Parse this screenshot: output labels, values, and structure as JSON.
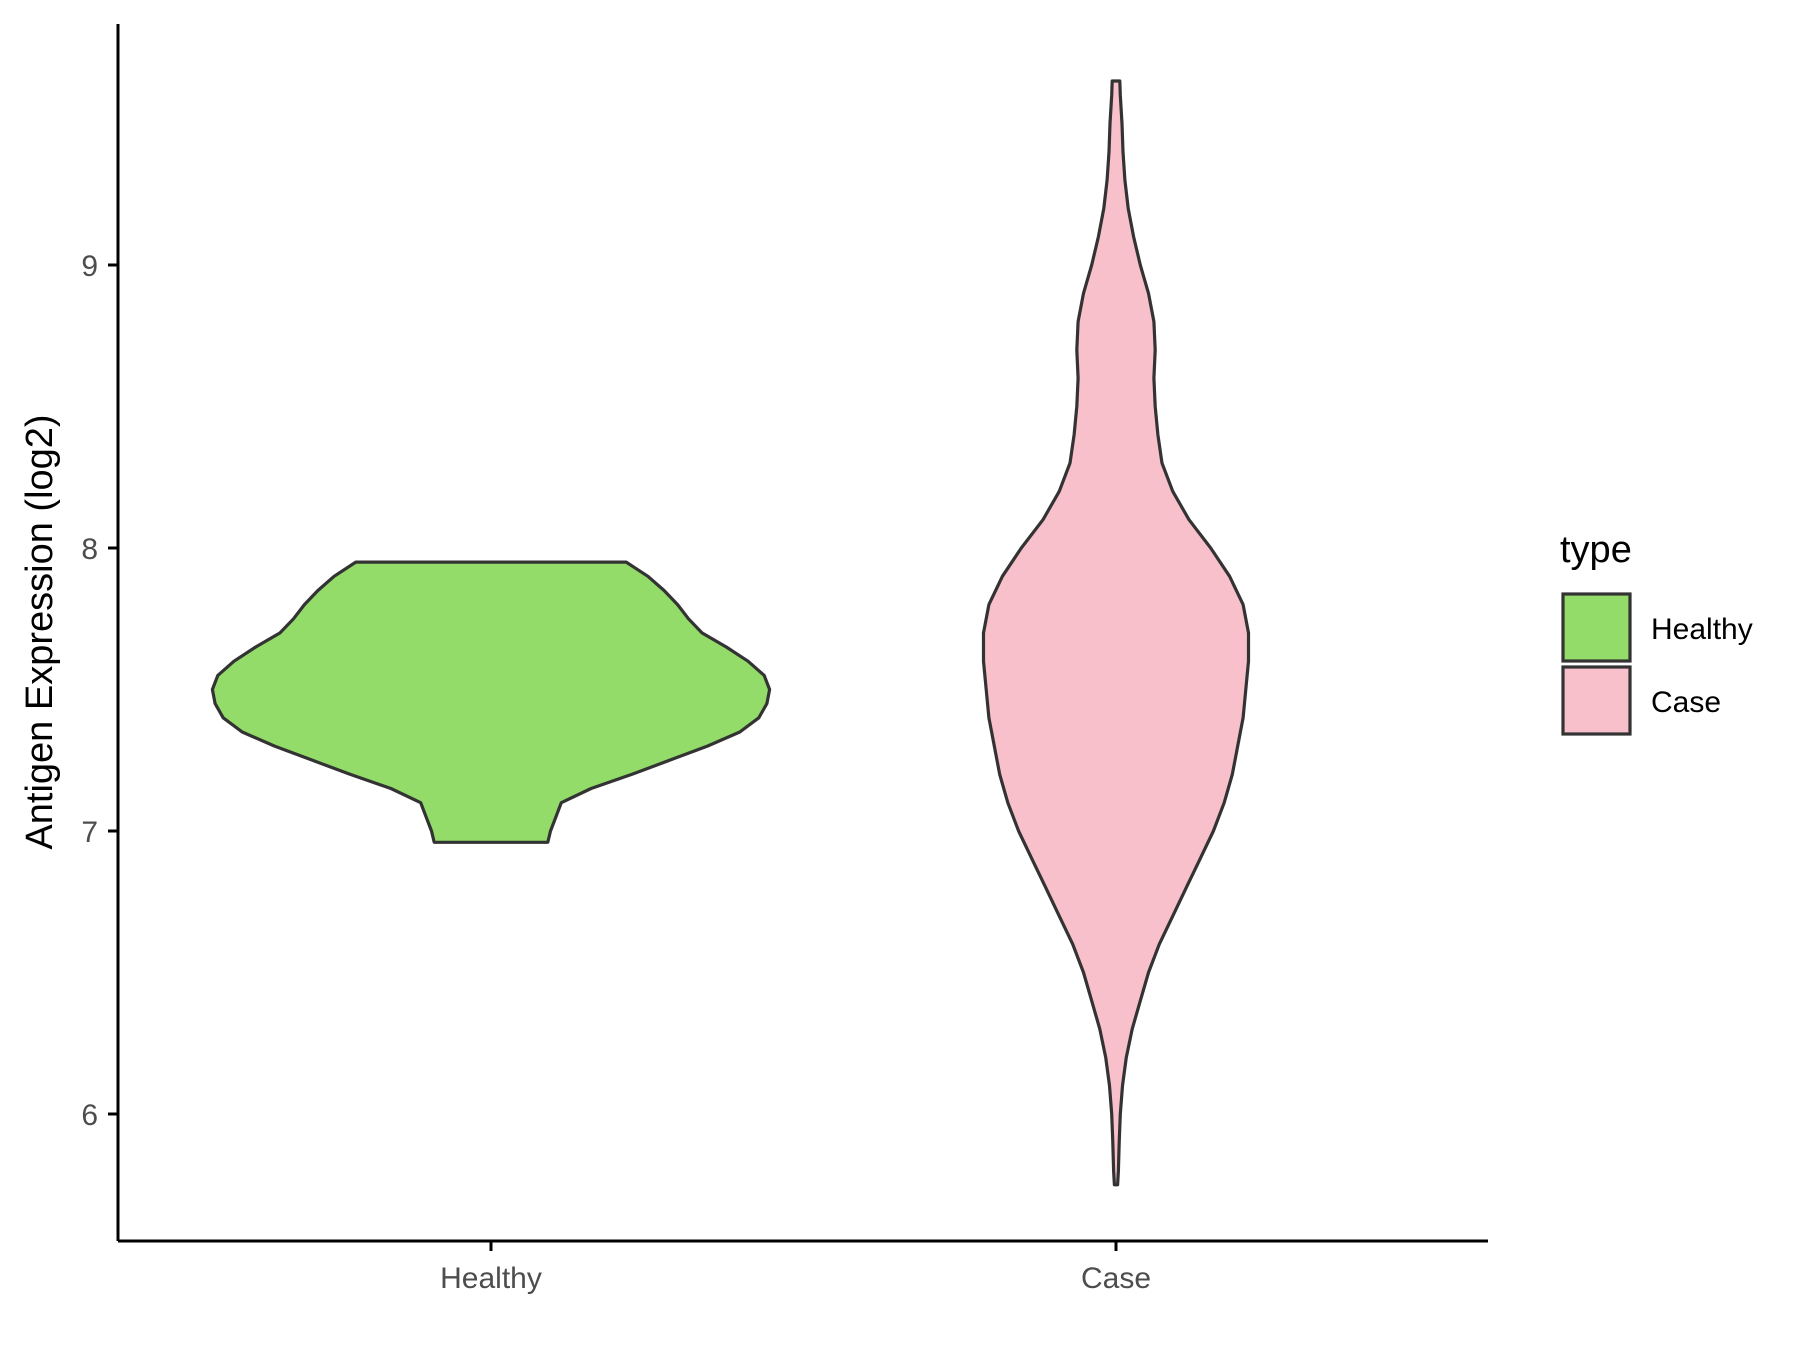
{
  "chart_data": {
    "type": "violin",
    "categories": [
      "Healthy",
      "Case"
    ],
    "ylabel": "Antigen Expression (log2)",
    "xlabel": "",
    "ylim": [
      5.55,
      9.85
    ],
    "yticks": [
      6,
      7,
      8,
      9
    ],
    "grid": false,
    "legend": {
      "title": "type",
      "position": "right",
      "entries": [
        {
          "label": "Healthy",
          "color": "#93dc6a"
        },
        {
          "label": "Case",
          "color": "#f8c0cb"
        }
      ]
    },
    "series": [
      {
        "name": "Healthy",
        "color": "#93dc6a",
        "range": [
          6.96,
          7.95
        ],
        "density": [
          [
            6.96,
            0.21
          ],
          [
            7.0,
            0.22
          ],
          [
            7.05,
            0.24
          ],
          [
            7.1,
            0.26
          ],
          [
            7.15,
            0.37
          ],
          [
            7.2,
            0.52
          ],
          [
            7.25,
            0.66
          ],
          [
            7.3,
            0.8
          ],
          [
            7.35,
            0.92
          ],
          [
            7.4,
            0.99
          ],
          [
            7.45,
            1.02
          ],
          [
            7.5,
            1.03
          ],
          [
            7.55,
            1.01
          ],
          [
            7.6,
            0.95
          ],
          [
            7.65,
            0.87
          ],
          [
            7.7,
            0.78
          ],
          [
            7.75,
            0.73
          ],
          [
            7.8,
            0.69
          ],
          [
            7.85,
            0.64
          ],
          [
            7.9,
            0.58
          ],
          [
            7.95,
            0.5
          ]
        ]
      },
      {
        "name": "Case",
        "color": "#f8c0cb",
        "range": [
          5.75,
          9.65
        ],
        "density": [
          [
            5.75,
            0.006
          ],
          [
            5.8,
            0.009
          ],
          [
            5.9,
            0.012
          ],
          [
            6.0,
            0.016
          ],
          [
            6.1,
            0.024
          ],
          [
            6.2,
            0.038
          ],
          [
            6.3,
            0.06
          ],
          [
            6.4,
            0.09
          ],
          [
            6.5,
            0.12
          ],
          [
            6.6,
            0.16
          ],
          [
            6.7,
            0.21
          ],
          [
            6.8,
            0.26
          ],
          [
            6.9,
            0.31
          ],
          [
            7.0,
            0.36
          ],
          [
            7.1,
            0.4
          ],
          [
            7.2,
            0.43
          ],
          [
            7.3,
            0.45
          ],
          [
            7.4,
            0.47
          ],
          [
            7.5,
            0.48
          ],
          [
            7.6,
            0.49
          ],
          [
            7.7,
            0.49
          ],
          [
            7.8,
            0.47
          ],
          [
            7.9,
            0.42
          ],
          [
            8.0,
            0.35
          ],
          [
            8.1,
            0.27
          ],
          [
            8.2,
            0.21
          ],
          [
            8.3,
            0.17
          ],
          [
            8.4,
            0.155
          ],
          [
            8.5,
            0.145
          ],
          [
            8.6,
            0.14
          ],
          [
            8.7,
            0.145
          ],
          [
            8.8,
            0.14
          ],
          [
            8.9,
            0.12
          ],
          [
            9.0,
            0.09
          ],
          [
            9.1,
            0.065
          ],
          [
            9.2,
            0.045
          ],
          [
            9.3,
            0.033
          ],
          [
            9.4,
            0.026
          ],
          [
            9.5,
            0.022
          ],
          [
            9.6,
            0.016
          ],
          [
            9.65,
            0.014
          ]
        ]
      }
    ]
  }
}
